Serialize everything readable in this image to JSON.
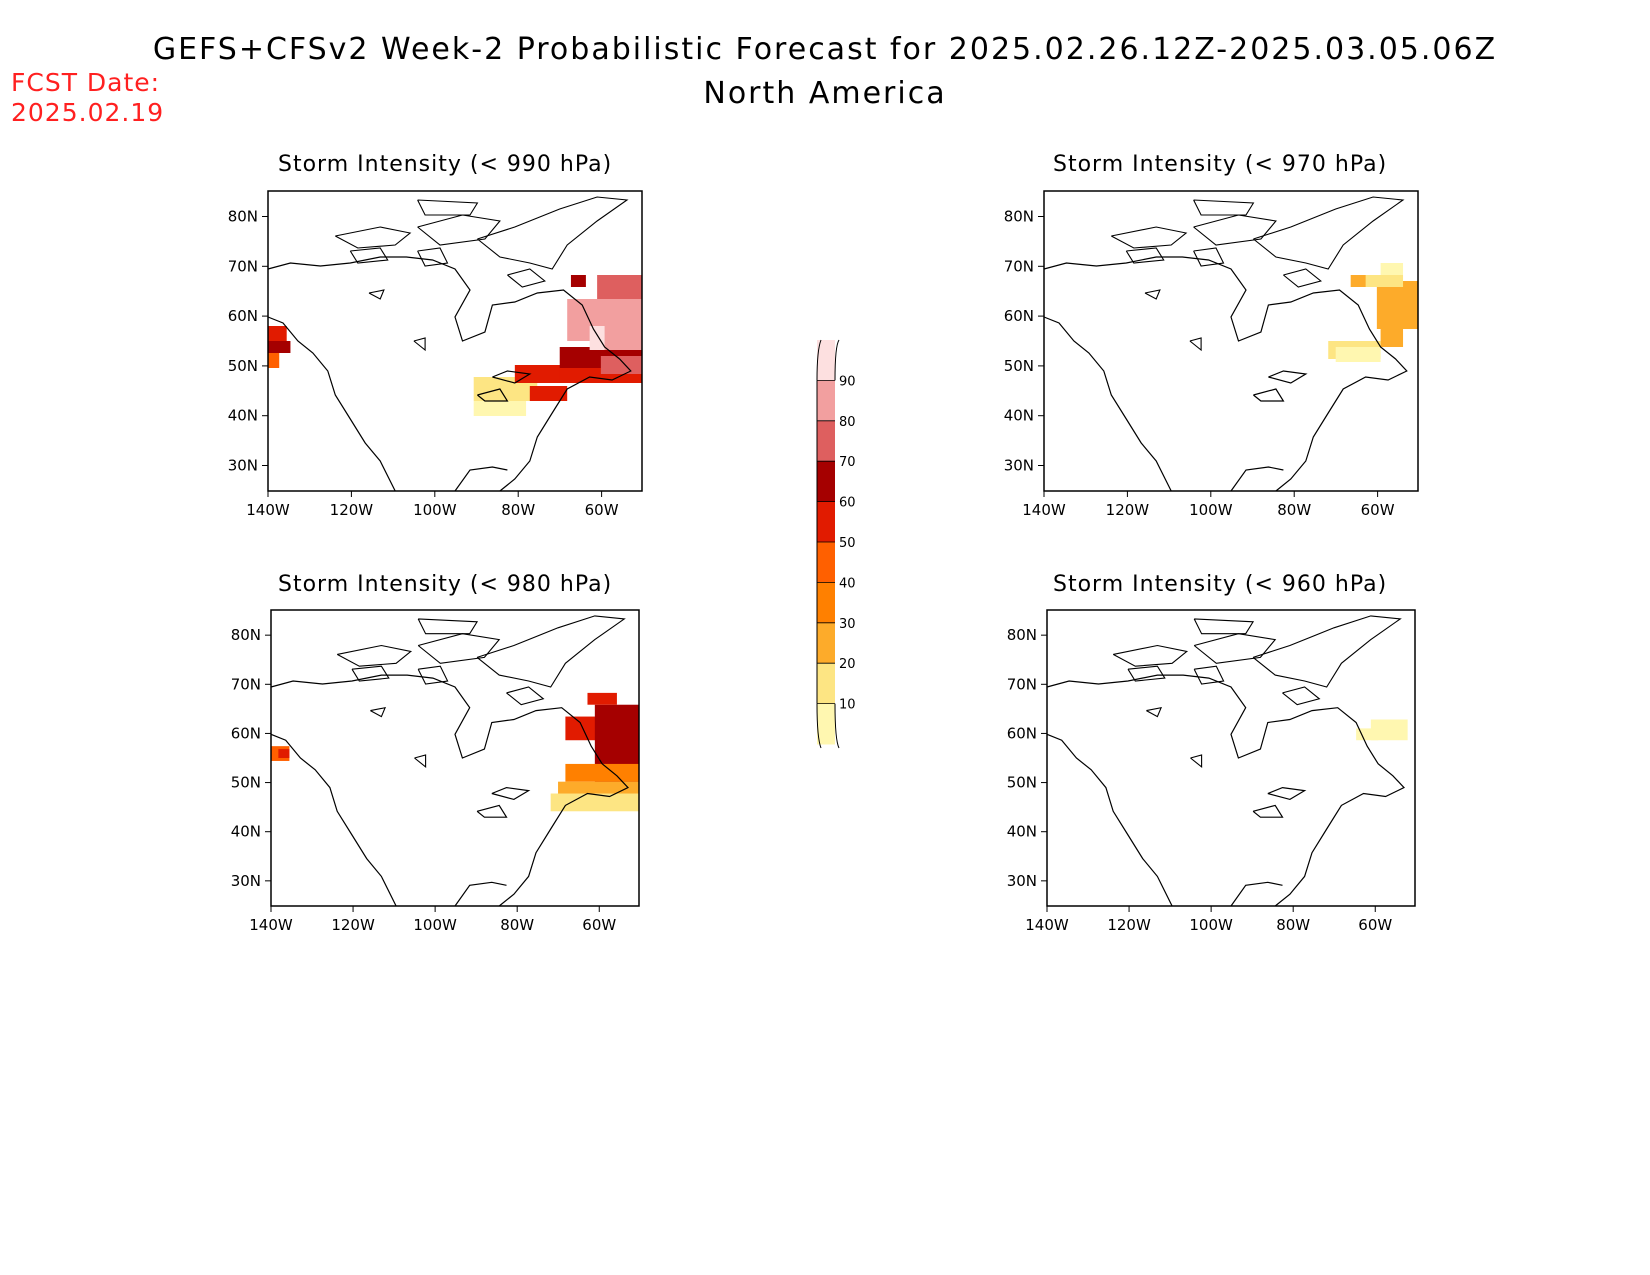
{
  "header": {
    "title": "GEFS+CFSv2 Week-2 Probabilistic Forecast for 2025.02.26.12Z-2025.03.05.06Z",
    "subtitle": "North America",
    "fcst_label": "FCST Date:",
    "fcst_date": "2025.02.19"
  },
  "lat_ticks": [
    "30N",
    "40N",
    "50N",
    "60N",
    "70N",
    "80N"
  ],
  "lon_ticks": [
    "140W",
    "120W",
    "100W",
    "80W",
    "60W"
  ],
  "colorbar": {
    "levels": [
      "10",
      "20",
      "30",
      "40",
      "50",
      "60",
      "70",
      "80",
      "90"
    ],
    "colors": [
      "#fff7b0",
      "#fde583",
      "#fdab2a",
      "#ff8000",
      "#ff6000",
      "#e11b00",
      "#a50000",
      "#de5f5f",
      "#f29f9f",
      "#fde0e0"
    ]
  },
  "panels": [
    {
      "title": "Storm Intensity (< 990 hPa)"
    },
    {
      "title": "Storm Intensity (< 970 hPa)"
    },
    {
      "title": "Storm Intensity (< 980 hPa)"
    },
    {
      "title": "Storm Intensity (< 960 hPa)"
    }
  ]
}
